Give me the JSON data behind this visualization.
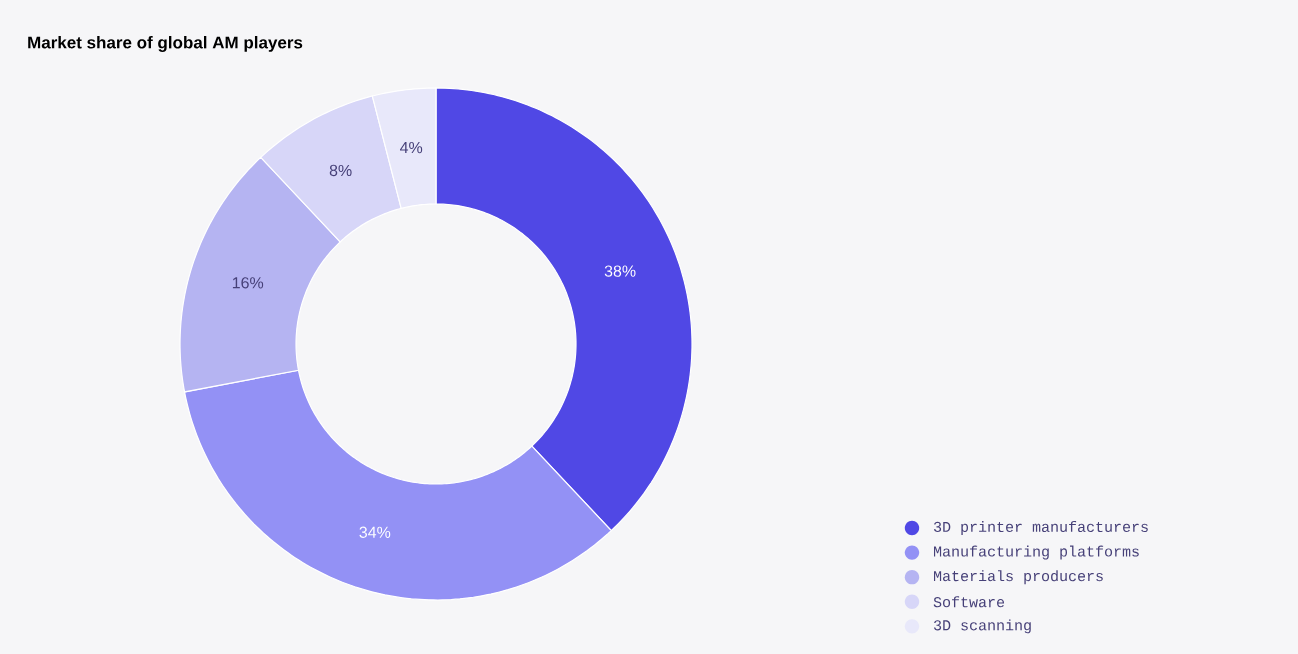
{
  "chart_data": {
    "type": "donut",
    "title": "Market share of global AM players",
    "categories": [
      "3D printer manufacturers",
      "Manufacturing platforms",
      "Materials producers",
      "Software",
      "3D scanning"
    ],
    "values": [
      38,
      34,
      16,
      8,
      4
    ],
    "value_labels": [
      "38%",
      "34%",
      "16%",
      "8%",
      "4%"
    ],
    "colors": [
      "#5048e5",
      "#9391f5",
      "#b5b4f2",
      "#d7d6f8",
      "#e8e8fa"
    ],
    "legend": "bottom right"
  }
}
